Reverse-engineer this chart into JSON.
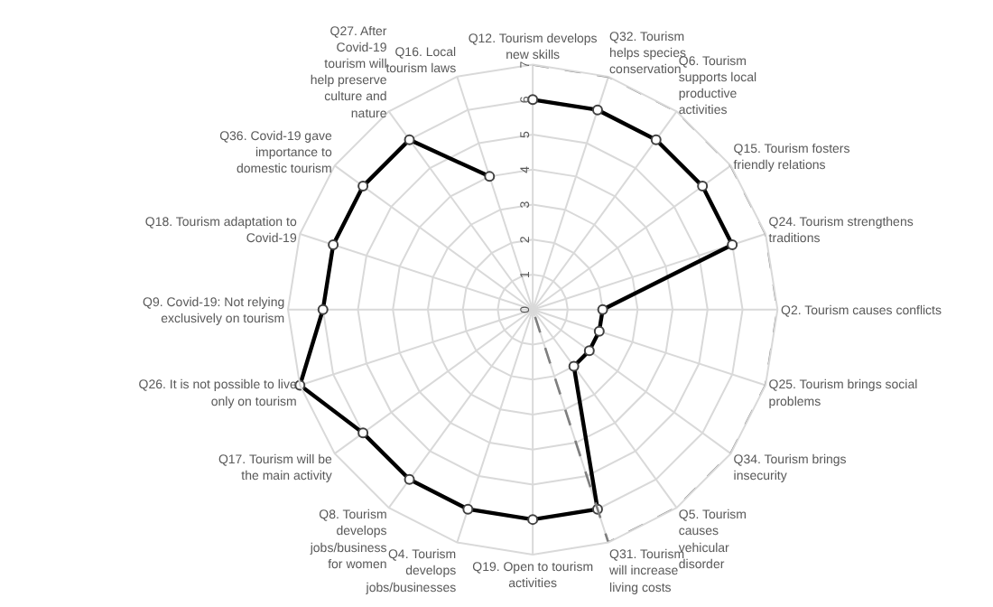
{
  "chart_data": {
    "type": "radar",
    "categories": [
      "Q12. Tourism develops new skills",
      "Q32. Tourism helps species conservation",
      "Q6. Tourism supports local productive activities",
      "Q15. Tourism fosters friendly relations",
      "Q24. Tourism strengthens traditions",
      "Q2. Tourism causes conflicts",
      "Q25. Tourism brings social problems",
      "Q34. Tourism brings insecurity",
      "Q5. Tourism causes vehicular disorder",
      "Q31. Tourism will increase living costs",
      "Q19. Open to tourism activities",
      "Q4. Tourism develops jobs/businesses",
      "Q8. Tourism develops jobs/business for women",
      "Q17. Tourism will be the main activity",
      "Q26. It is not possible to live only on tourism",
      "Q9. Covid-19: Not relying exclusively on tourism",
      "Q18. Tourism adaptation to Covid-19",
      "Q36. Covid-19 gave importance to domestic tourism",
      "Q27. After Covid-19 tourism will help preserve culture and nature",
      "Q16. Local tourism laws"
    ],
    "series": [
      {
        "color": "#000000",
        "marker": "circle",
        "line_style": "solid",
        "values": [
          6,
          6,
          6,
          6,
          6,
          2,
          2,
          2,
          2,
          6,
          6,
          6,
          6,
          6,
          7,
          6,
          6,
          6,
          6,
          4
        ]
      },
      {
        "color": "#7f7f7f",
        "marker": "none",
        "line_style": "dashed",
        "values": [
          7,
          7,
          7,
          7,
          7,
          7,
          7,
          7,
          7,
          7,
          0,
          0,
          0,
          0,
          0,
          0,
          0,
          0,
          0,
          0
        ]
      }
    ],
    "ylim": [
      0,
      7
    ],
    "yticks": [
      0,
      1,
      2,
      3,
      4,
      5,
      6,
      7
    ],
    "grid": true
  }
}
